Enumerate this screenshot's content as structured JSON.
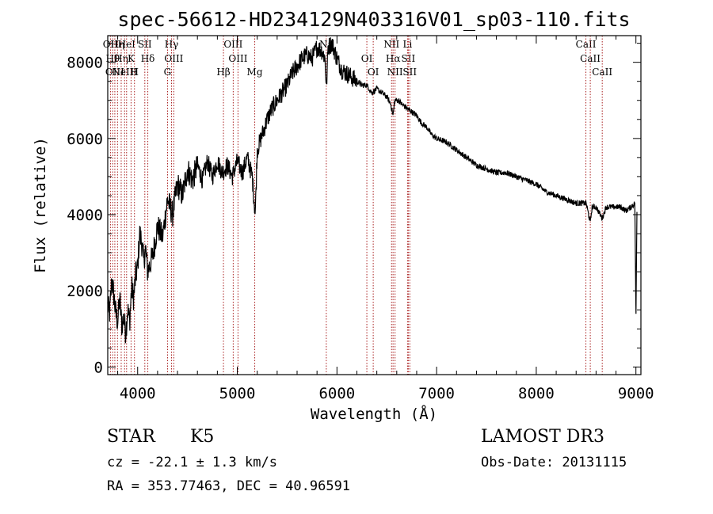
{
  "chart_data": {
    "type": "line",
    "title": "spec-56612-HD234129N403316V01_sp03-110.fits",
    "xlabel": "Wavelength (Å)",
    "ylabel": "Flux (relative)",
    "xlim": [
      3700,
      9050
    ],
    "ylim": [
      -200,
      8700
    ],
    "xticks": [
      4000,
      5000,
      6000,
      7000,
      8000,
      9000
    ],
    "xtick_labels": [
      "4000",
      "5000",
      "6000",
      "7000",
      "8000",
      "9000"
    ],
    "yticks": [
      0,
      2000,
      4000,
      6000,
      8000
    ],
    "ytick_labels": [
      "0",
      "2000",
      "4000",
      "6000",
      "8000"
    ],
    "series": [
      {
        "name": "flux",
        "x": [
          3700,
          3720,
          3740,
          3760,
          3780,
          3800,
          3820,
          3840,
          3860,
          3880,
          3900,
          3920,
          3940,
          3960,
          3980,
          4000,
          4020,
          4040,
          4060,
          4080,
          4100,
          4150,
          4200,
          4250,
          4300,
          4350,
          4400,
          4450,
          4500,
          4550,
          4600,
          4650,
          4700,
          4750,
          4800,
          4850,
          4900,
          4950,
          5000,
          5050,
          5100,
          5150,
          5180,
          5200,
          5250,
          5300,
          5350,
          5400,
          5450,
          5500,
          5550,
          5600,
          5650,
          5700,
          5750,
          5800,
          5850,
          5880,
          5895,
          5910,
          5950,
          6000,
          6050,
          6100,
          6150,
          6200,
          6250,
          6300,
          6350,
          6400,
          6450,
          6500,
          6540,
          6563,
          6580,
          6620,
          6650,
          6700,
          6750,
          6800,
          6850,
          6900,
          6950,
          7000,
          7100,
          7200,
          7300,
          7400,
          7500,
          7600,
          7700,
          7800,
          7900,
          8000,
          8100,
          8200,
          8300,
          8400,
          8450,
          8500,
          8542,
          8560,
          8600,
          8662,
          8700,
          8750,
          8800,
          8850,
          8900,
          8950,
          8990,
          9000,
          9010
        ],
        "y": [
          1600,
          1400,
          2300,
          1900,
          1400,
          1200,
          1800,
          1100,
          1300,
          900,
          1500,
          1200,
          2100,
          1800,
          2400,
          2600,
          3500,
          3300,
          2800,
          3100,
          2500,
          2900,
          3700,
          3400,
          4400,
          4000,
          4800,
          4500,
          5200,
          4900,
          5300,
          4900,
          5400,
          5000,
          5400,
          5100,
          5300,
          5000,
          5400,
          5100,
          5500,
          5000,
          4000,
          5700,
          6100,
          6500,
          6800,
          7000,
          7200,
          7400,
          7700,
          7900,
          8100,
          8200,
          8100,
          8400,
          8300,
          8100,
          7300,
          8400,
          8500,
          8100,
          7800,
          7700,
          7600,
          7500,
          7400,
          7400,
          7200,
          7300,
          7200,
          7100,
          6900,
          6600,
          7000,
          7000,
          6900,
          6800,
          6700,
          6600,
          6400,
          6300,
          6100,
          6000,
          5900,
          5700,
          5500,
          5300,
          5200,
          5100,
          5100,
          5000,
          4900,
          4800,
          4600,
          4500,
          4400,
          4300,
          4300,
          4300,
          3800,
          4200,
          4200,
          3900,
          4200,
          4200,
          4200,
          4200,
          4100,
          4200,
          4300,
          1100,
          4100
        ]
      }
    ],
    "lines": [
      {
        "wl": 3727,
        "label": "OII"
      },
      {
        "wl": 3750,
        "label": "Hθ"
      },
      {
        "wl": 3771,
        "label": "OIII"
      },
      {
        "wl": 3798,
        "label": "Hη"
      },
      {
        "wl": 3835,
        "label": "Hη"
      },
      {
        "wl": 3869,
        "label": "NeIII"
      },
      {
        "wl": 3889,
        "label": "HeI"
      },
      {
        "wl": 3934,
        "label": "K"
      },
      {
        "wl": 3968,
        "label": "H"
      },
      {
        "wl": 4072,
        "label": "SII"
      },
      {
        "wl": 4102,
        "label": "Hδ"
      },
      {
        "wl": 4300,
        "label": "G"
      },
      {
        "wl": 4340,
        "label": "Hγ"
      },
      {
        "wl": 4363,
        "label": "OIII"
      },
      {
        "wl": 4861,
        "label": "Hβ"
      },
      {
        "wl": 4959,
        "label": "OIII"
      },
      {
        "wl": 5007,
        "label": "OIII"
      },
      {
        "wl": 5175,
        "label": "Mg"
      },
      {
        "wl": 5893,
        "label": "Na"
      },
      {
        "wl": 6300,
        "label": "OI"
      },
      {
        "wl": 6364,
        "label": "OI"
      },
      {
        "wl": 6548,
        "label": "NII"
      },
      {
        "wl": 6563,
        "label": "Hα"
      },
      {
        "wl": 6583,
        "label": "NII"
      },
      {
        "wl": 6708,
        "label": "Li"
      },
      {
        "wl": 6716,
        "label": "SII"
      },
      {
        "wl": 6731,
        "label": "SII"
      },
      {
        "wl": 8498,
        "label": "CaII"
      },
      {
        "wl": 8542,
        "label": "CaII"
      },
      {
        "wl": 8662,
        "label": "CaII"
      }
    ]
  },
  "info": {
    "object_type": "STAR",
    "subclass": "K5",
    "survey": "LAMOST DR3",
    "cz": "cz = -22.1 ± 1.3 km/s",
    "obs_date": "Obs-Date: 20131115",
    "coords": "RA = 353.77463, DEC =  40.96591"
  },
  "colors": {
    "line_marker": "#aa2222",
    "spectrum": "#000000"
  }
}
